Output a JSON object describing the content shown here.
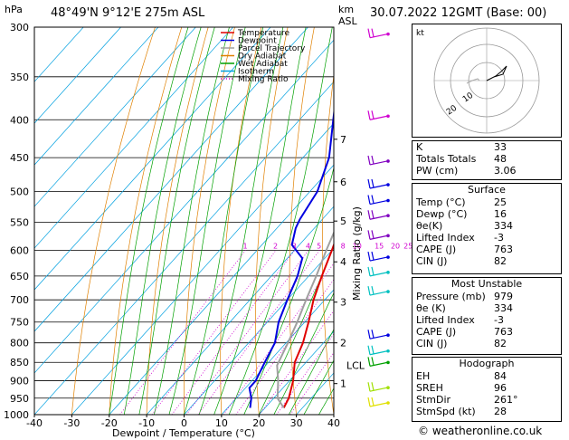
{
  "header": {
    "location": "48°49'N  9°12'E  275m  ASL",
    "datetime": "30.07.2022  12GMT  (Base: 00)",
    "unit_hpa": "hPa",
    "unit_km": "km",
    "unit_asl": "ASL"
  },
  "chart_data": {
    "type": "skew-t",
    "xlabel": "Dewpoint / Temperature (°C)",
    "ylabel_right": "Mixing Ratio (g/kg)",
    "x_ticks": [
      -40,
      -30,
      -20,
      -10,
      0,
      10,
      20,
      30,
      40
    ],
    "pressure_levels": [
      300,
      350,
      400,
      450,
      500,
      550,
      600,
      650,
      700,
      750,
      800,
      850,
      900,
      950,
      1000
    ],
    "km_ticks": [
      {
        "km": "1",
        "p": 908
      },
      {
        "km": "2",
        "p": 800
      },
      {
        "km": "3",
        "p": 705
      },
      {
        "km": "4",
        "p": 622
      },
      {
        "km": "5",
        "p": 548
      },
      {
        "km": "6",
        "p": 485
      },
      {
        "km": "7",
        "p": 425
      }
    ],
    "lcl_label": "LCL",
    "lcl_p": 858,
    "mixing_ratio_labels": [
      "1",
      "2",
      "3",
      "4",
      "5",
      "8",
      "10",
      "15",
      "20",
      "25"
    ],
    "legend": [
      {
        "name": "Temperature",
        "color": "#e00000",
        "style": "solid"
      },
      {
        "name": "Dewpoint",
        "color": "#0000e0",
        "style": "solid"
      },
      {
        "name": "Parcel Trajectory",
        "color": "#a0a0a0",
        "style": "solid"
      },
      {
        "name": "Dry Adiabat",
        "color": "#e08000",
        "style": "solid"
      },
      {
        "name": "Wet Adiabat",
        "color": "#00a000",
        "style": "solid"
      },
      {
        "name": "Isotherm",
        "color": "#00a0e0",
        "style": "solid"
      },
      {
        "name": "Mixing Ratio",
        "color": "#d000d0",
        "style": "dotted"
      }
    ],
    "series": [
      {
        "name": "Temperature",
        "color": "#e00000",
        "points": [
          {
            "p": 979,
            "t": 25
          },
          {
            "p": 950,
            "t": 24
          },
          {
            "p": 900,
            "t": 21
          },
          {
            "p": 850,
            "t": 17
          },
          {
            "p": 800,
            "t": 14.5
          },
          {
            "p": 750,
            "t": 11
          },
          {
            "p": 700,
            "t": 7
          },
          {
            "p": 650,
            "t": 3.5
          },
          {
            "p": 600,
            "t": 0
          },
          {
            "p": 550,
            "t": -4
          },
          {
            "p": 500,
            "t": -9
          },
          {
            "p": 450,
            "t": -14
          },
          {
            "p": 400,
            "t": -20
          },
          {
            "p": 350,
            "t": -28
          },
          {
            "p": 300,
            "t": -36
          }
        ]
      },
      {
        "name": "Dewpoint",
        "color": "#0000e0",
        "points": [
          {
            "p": 979,
            "t": 16
          },
          {
            "p": 950,
            "t": 14
          },
          {
            "p": 920,
            "t": 11
          },
          {
            "p": 900,
            "t": 11
          },
          {
            "p": 850,
            "t": 9
          },
          {
            "p": 800,
            "t": 7
          },
          {
            "p": 750,
            "t": 3
          },
          {
            "p": 700,
            "t": 0
          },
          {
            "p": 650,
            "t": -3
          },
          {
            "p": 615,
            "t": -6
          },
          {
            "p": 590,
            "t": -12
          },
          {
            "p": 560,
            "t": -15
          },
          {
            "p": 545,
            "t": -16
          },
          {
            "p": 500,
            "t": -18
          },
          {
            "p": 450,
            "t": -23
          },
          {
            "p": 400,
            "t": -31
          },
          {
            "p": 350,
            "t": -40
          },
          {
            "p": 300,
            "t": -49
          }
        ]
      },
      {
        "name": "Parcel Trajectory",
        "color": "#a0a0a0",
        "points": [
          {
            "p": 979,
            "t": 25
          },
          {
            "p": 950,
            "t": 21
          },
          {
            "p": 900,
            "t": 17
          },
          {
            "p": 858,
            "t": 13
          },
          {
            "p": 800,
            "t": 10.5
          },
          {
            "p": 750,
            "t": 8
          },
          {
            "p": 700,
            "t": 5
          },
          {
            "p": 650,
            "t": 2
          },
          {
            "p": 600,
            "t": -1.5
          },
          {
            "p": 550,
            "t": -5
          },
          {
            "p": 500,
            "t": -9.5
          },
          {
            "p": 450,
            "t": -15
          },
          {
            "p": 400,
            "t": -21
          },
          {
            "p": 350,
            "t": -28
          },
          {
            "p": 300,
            "t": -36
          }
        ]
      }
    ]
  },
  "hodograph": {
    "label": "kt",
    "ring_labels": [
      "10",
      "20"
    ]
  },
  "indices": {
    "k_label": "K",
    "k_value": "33",
    "tt_label": "Totals Totals",
    "tt_value": "48",
    "pw_label": "PW (cm)",
    "pw_value": "3.06"
  },
  "surface": {
    "title": "Surface",
    "temp_label": "Temp (°C)",
    "temp_value": "25",
    "dewp_label": "Dewp (°C)",
    "dewp_value": "16",
    "theta_label": "θe(K)",
    "theta_value": "334",
    "li_label": "Lifted Index",
    "li_value": "-3",
    "cape_label": "CAPE (J)",
    "cape_value": "763",
    "cin_label": "CIN (J)",
    "cin_value": "82"
  },
  "most_unstable": {
    "title": "Most Unstable",
    "pres_label": "Pressure (mb)",
    "pres_value": "979",
    "theta_label": "θe (K)",
    "theta_value": "334",
    "li_label": "Lifted Index",
    "li_value": "-3",
    "cape_label": "CAPE (J)",
    "cape_value": "763",
    "cin_label": "CIN (J)",
    "cin_value": "82"
  },
  "hodo_table": {
    "title": "Hodograph",
    "eh_label": "EH",
    "eh_value": "84",
    "sreh_label": "SREH",
    "sreh_value": "96",
    "stmdir_label": "StmDir",
    "stmdir_value": "261°",
    "stmspd_label": "StmSpd (kt)",
    "stmspd_value": "28"
  },
  "credit": "© weatheronline.co.uk"
}
